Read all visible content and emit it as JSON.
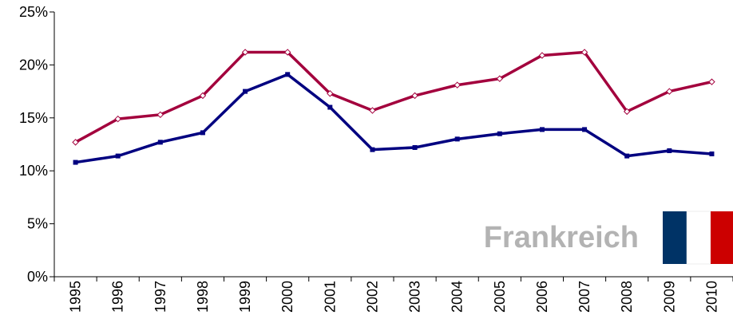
{
  "chart_data": {
    "type": "line",
    "annotation": "Frankreich",
    "categories": [
      "1995",
      "1996",
      "1997",
      "1998",
      "1999",
      "2000",
      "2001",
      "2002",
      "2003",
      "2004",
      "2005",
      "2006",
      "2007",
      "2008",
      "2009",
      "2010"
    ],
    "series": [
      {
        "color": "#a3003d",
        "values": [
          12.7,
          14.9,
          15.3,
          17.1,
          21.2,
          21.2,
          17.3,
          15.7,
          17.1,
          18.1,
          18.7,
          20.9,
          21.2,
          15.6,
          17.5,
          18.4
        ]
      },
      {
        "color": "#000080",
        "values": [
          10.8,
          11.4,
          12.7,
          13.6,
          17.5,
          19.1,
          16.0,
          12.0,
          12.2,
          13.0,
          13.5,
          13.9,
          13.9,
          11.4,
          11.9,
          11.6
        ]
      }
    ],
    "ylim": [
      0,
      25
    ],
    "yticks": [
      {
        "value": 0,
        "label": "0%"
      },
      {
        "value": 5,
        "label": "5%"
      },
      {
        "value": 10,
        "label": "10%"
      },
      {
        "value": 15,
        "label": "15%"
      },
      {
        "value": 20,
        "label": "20%"
      },
      {
        "value": 25,
        "label": "25%"
      }
    ]
  }
}
